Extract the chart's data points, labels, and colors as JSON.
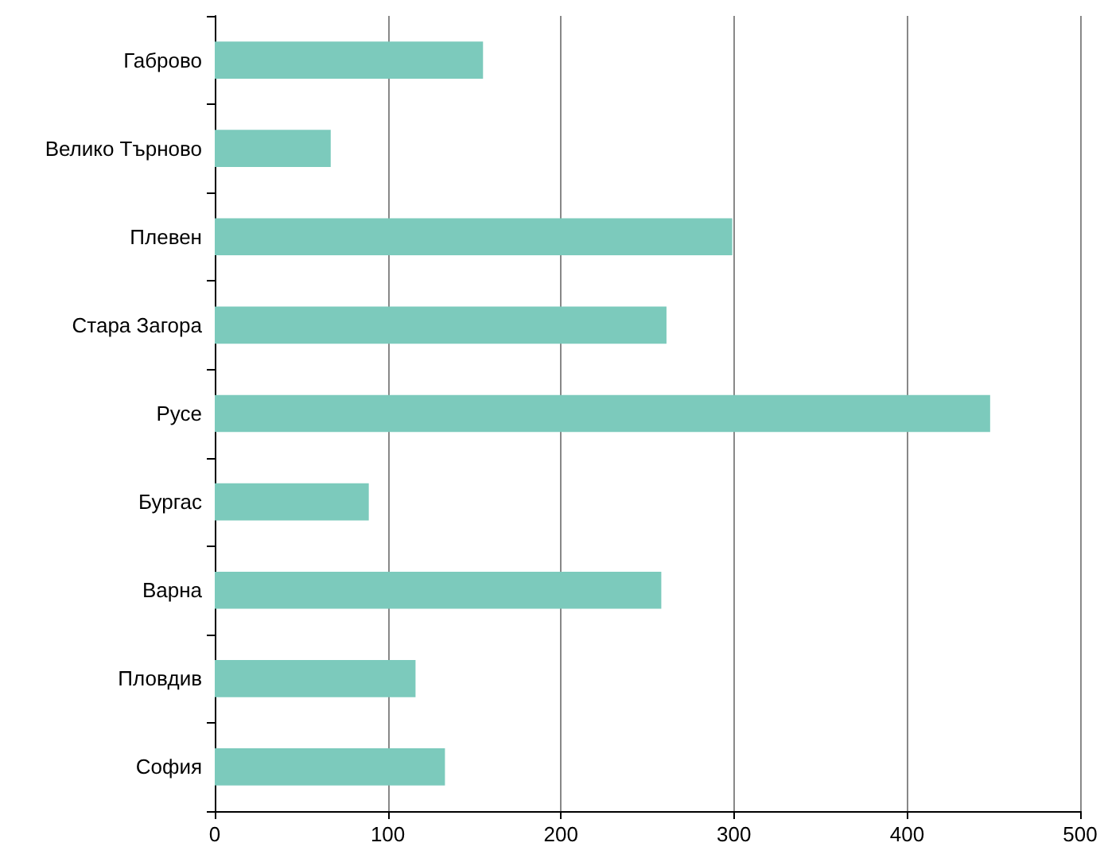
{
  "chart_data": {
    "type": "bar",
    "orientation": "horizontal",
    "categories": [
      "Габрово",
      "Велико Търново",
      "Плевен",
      "Стара Загора",
      "Русе",
      "Бургас",
      "Варна",
      "Пловдив",
      "София"
    ],
    "values": [
      155,
      67,
      299,
      261,
      448,
      89,
      258,
      116,
      133
    ],
    "color": "#7ccabc",
    "xlim": [
      0,
      500
    ],
    "xticks": [
      0,
      100,
      200,
      300,
      400,
      500
    ],
    "grid": "x"
  }
}
